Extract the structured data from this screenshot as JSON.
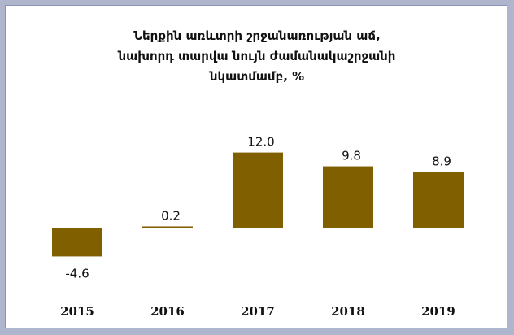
{
  "chart_data": {
    "type": "bar",
    "title_lines": [
      "Ներքին առևտրի շրջանառության աճ,",
      "նախորդ տարվա նույն ժամանակաշրջանի",
      "նկատմամբ, %"
    ],
    "categories": [
      "2015",
      "2016",
      "2017",
      "2018",
      "2019"
    ],
    "values": [
      -4.6,
      0.2,
      12.0,
      9.8,
      8.9
    ],
    "value_labels": [
      "-4.6",
      "0.2",
      "12.0",
      "9.8",
      "8.9"
    ],
    "bar_color": "#7f5f00",
    "grid": false,
    "legend": "none"
  }
}
